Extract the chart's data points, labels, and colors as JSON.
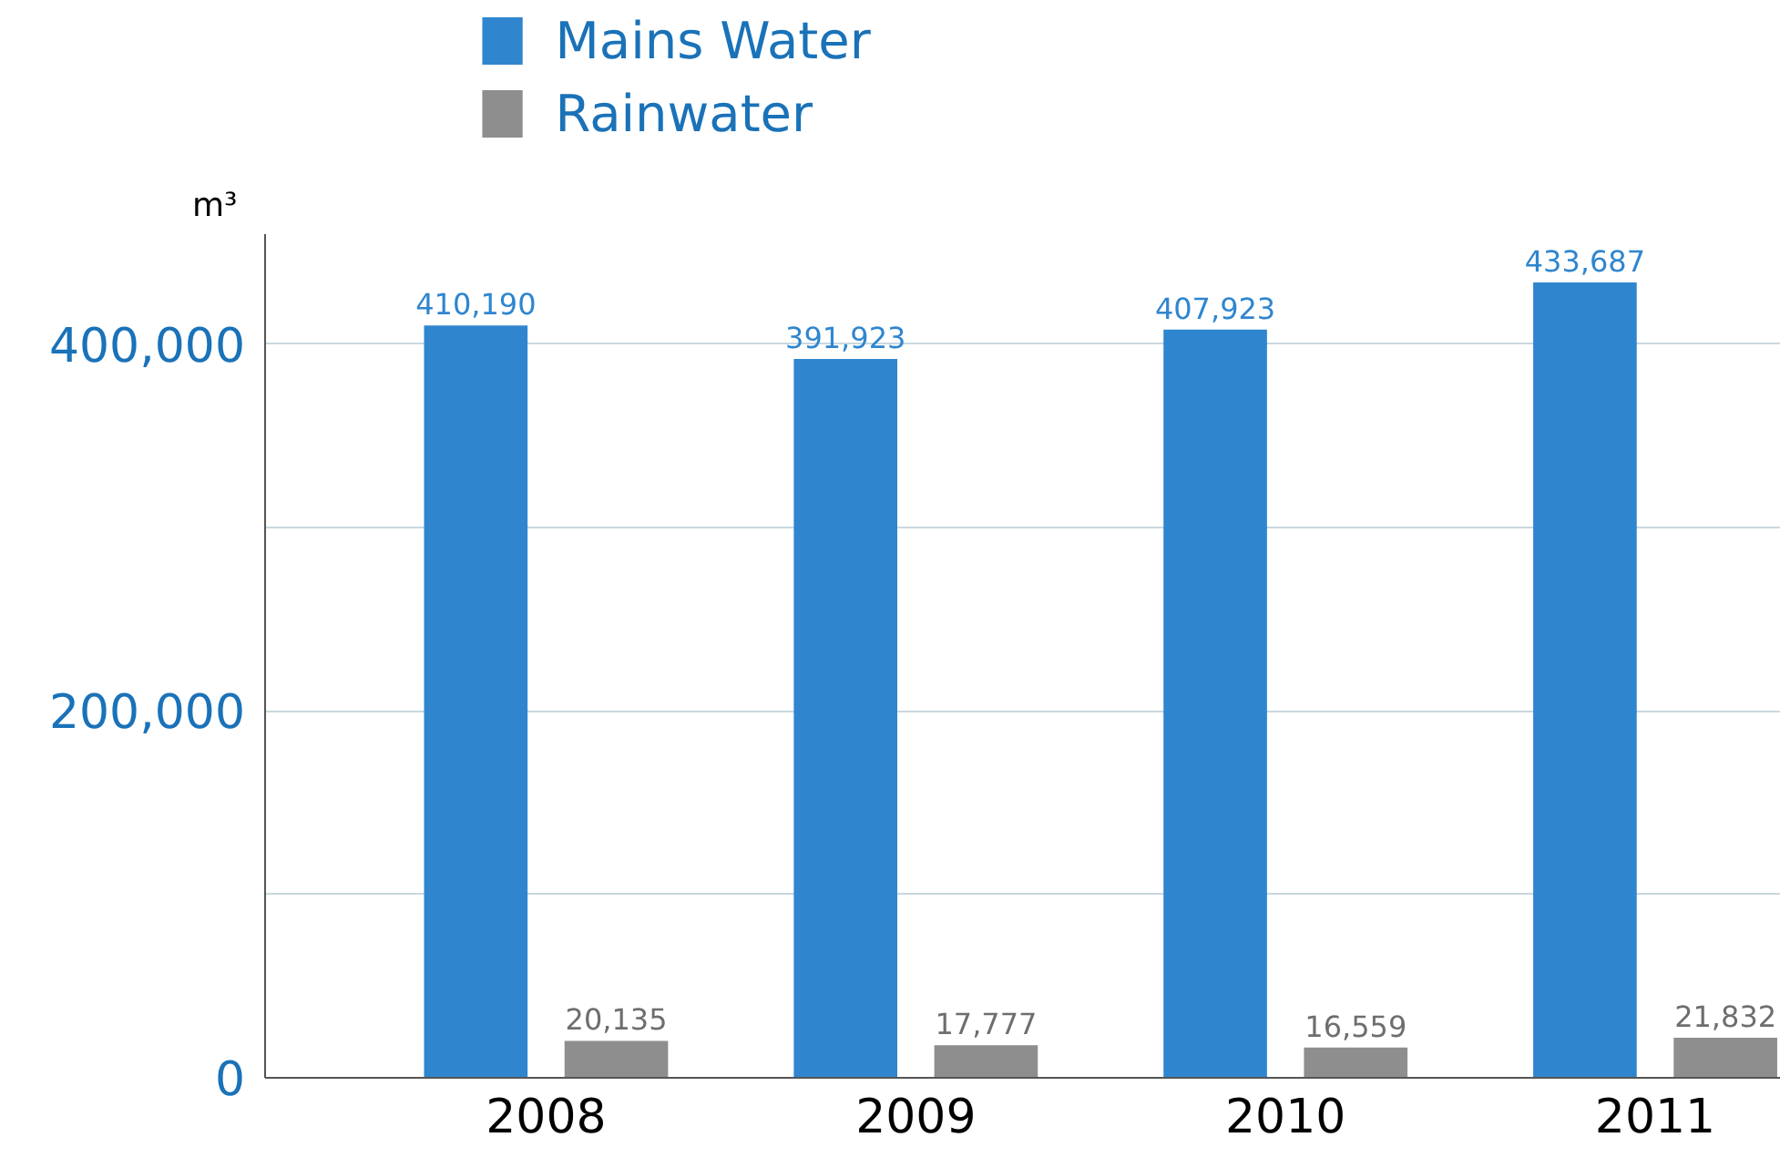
{
  "chart_data": {
    "type": "bar",
    "categories": [
      "2008",
      "2009",
      "2010",
      "2011"
    ],
    "ylabel": "m³",
    "series": [
      {
        "name": "Mains Water",
        "color": "#2f86cf",
        "values": [
          410190,
          391923,
          407923,
          433687
        ],
        "value_labels": [
          "410,190",
          "391,923",
          "407,923",
          "433,687"
        ]
      },
      {
        "name": "Rainwater",
        "color": "#8e8e8e",
        "values": [
          20135,
          17777,
          16559,
          21832
        ],
        "value_labels": [
          "20,135",
          "17,777",
          "16,559",
          "21,832"
        ]
      }
    ],
    "ylim": [
      0,
      460000
    ],
    "yticks": [
      0,
      {
        "value": 100000,
        "label": null
      },
      {
        "value": 200000,
        "label": "200,000"
      },
      {
        "value": 300000,
        "label": null
      },
      {
        "value": 400000,
        "label": "400,000"
      }
    ],
    "grid": "y",
    "legend": "top left"
  }
}
